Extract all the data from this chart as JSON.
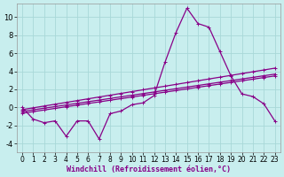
{
  "xlabel": "Windchill (Refroidissement éolien,°C)",
  "background_color": "#c8eeee",
  "grid_color": "#a8d8d8",
  "line_color": "#880088",
  "ylim": [
    -5,
    11.5
  ],
  "xlim": [
    -0.5,
    23.5
  ],
  "yticks": [
    -4,
    -2,
    0,
    2,
    4,
    6,
    8,
    10
  ],
  "xticks": [
    0,
    1,
    2,
    3,
    4,
    5,
    6,
    7,
    8,
    9,
    10,
    11,
    12,
    13,
    14,
    15,
    16,
    17,
    18,
    19,
    20,
    21,
    22,
    23
  ],
  "main_series": [
    0.0,
    -1.3,
    -1.7,
    -1.5,
    -3.2,
    -1.5,
    -1.5,
    -3.5,
    -0.7,
    -0.4,
    0.3,
    0.5,
    1.3,
    5.0,
    8.3,
    11.0,
    9.3,
    8.9,
    6.2,
    3.5,
    1.5,
    1.2,
    0.4,
    -1.5
  ],
  "trend_lines": [
    [
      -0.25,
      -0.05,
      0.15,
      0.35,
      0.55,
      0.75,
      0.95,
      1.15,
      1.35,
      1.55,
      1.75,
      1.95,
      2.15,
      2.35,
      2.55,
      2.75,
      2.95,
      3.15,
      3.35,
      3.55,
      3.75,
      3.95,
      4.15,
      4.35
    ],
    [
      -0.45,
      -0.27,
      -0.09,
      0.09,
      0.27,
      0.45,
      0.63,
      0.81,
      0.99,
      1.17,
      1.35,
      1.53,
      1.71,
      1.89,
      2.07,
      2.25,
      2.43,
      2.61,
      2.79,
      2.97,
      3.15,
      3.33,
      3.51,
      3.69
    ],
    [
      -0.65,
      -0.47,
      -0.29,
      -0.11,
      0.07,
      0.25,
      0.43,
      0.61,
      0.79,
      0.97,
      1.15,
      1.33,
      1.51,
      1.69,
      1.87,
      2.05,
      2.23,
      2.41,
      2.59,
      2.77,
      2.95,
      3.13,
      3.31,
      3.49
    ]
  ],
  "markersize": 2.5,
  "linewidth": 0.9
}
